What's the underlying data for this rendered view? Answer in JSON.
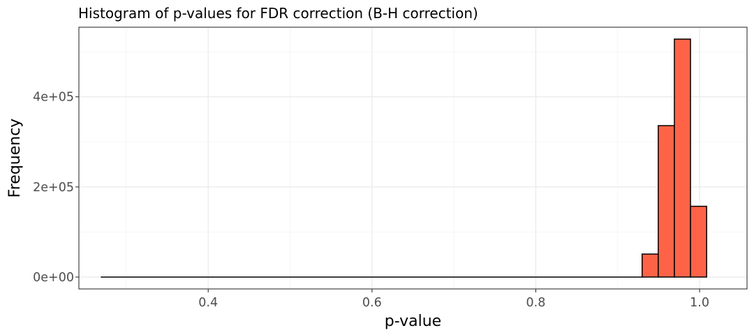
{
  "chart_data": {
    "type": "bar",
    "title": "Histogram of p-values for FDR correction (B-H correction)",
    "xlabel": "p-value",
    "ylabel": "Frequency",
    "xlim": [
      0.2421,
      1.0579
    ],
    "ylim": [
      -26400,
      554400
    ],
    "x_ticks": [
      {
        "value": 0.4,
        "label": "0.4"
      },
      {
        "value": 0.6,
        "label": "0.6"
      },
      {
        "value": 0.8,
        "label": "0.8"
      },
      {
        "value": 1.0,
        "label": "1.0"
      }
    ],
    "x_minor_ticks": [
      0.3,
      0.5,
      0.7,
      0.9
    ],
    "y_ticks": [
      {
        "value": 0,
        "label": "0e+00"
      },
      {
        "value": 200000,
        "label": "2e+05"
      },
      {
        "value": 400000,
        "label": "4e+05"
      }
    ],
    "y_minor_ticks": [
      100000,
      300000,
      500000
    ],
    "bin_width": 0.0197,
    "bins": [
      {
        "x0": 0.2688,
        "x1": 0.9298,
        "count": 0
      },
      {
        "x0": 0.9298,
        "x1": 0.9495,
        "count": 51000
      },
      {
        "x0": 0.9495,
        "x1": 0.9692,
        "count": 336000
      },
      {
        "x0": 0.9692,
        "x1": 0.9889,
        "count": 528000
      },
      {
        "x0": 0.9889,
        "x1": 1.0086,
        "count": 157000
      }
    ],
    "grid": true,
    "fill_color": "#ff6347",
    "outline_color": "#000000"
  }
}
